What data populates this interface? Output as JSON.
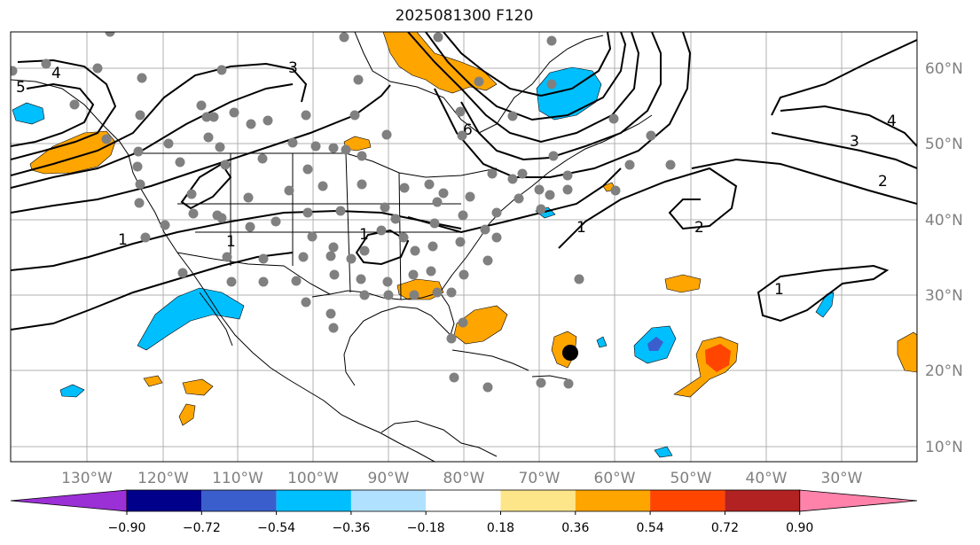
{
  "title": "2025081300 F120",
  "lat_labels": [
    "60°N",
    "50°N",
    "40°N",
    "30°N",
    "20°N",
    "10°N"
  ],
  "lon_labels": [
    "130°W",
    "120°W",
    "110°W",
    "100°W",
    "90°W",
    "80°W",
    "70°W",
    "60°W",
    "50°W",
    "40°W",
    "30°W"
  ],
  "colorbar": {
    "ticks": [
      "−0.90",
      "−0.72",
      "−0.54",
      "−0.36",
      "−0.18",
      "0.18",
      "0.36",
      "0.54",
      "0.72",
      "0.90"
    ],
    "colors": [
      "#9b30d6",
      "#00008b",
      "#3a5fcd",
      "#00bfff",
      "#b0e2ff",
      "#ffffff",
      "#fde68a",
      "#ffa500",
      "#ff4500",
      "#b22222",
      "#ff82ab"
    ]
  },
  "contour_labels": [
    "1",
    "1",
    "1",
    "1",
    "1",
    "2",
    "2",
    "3",
    "3",
    "4",
    "4",
    "5",
    "6"
  ],
  "storm_marker": "current-position"
}
